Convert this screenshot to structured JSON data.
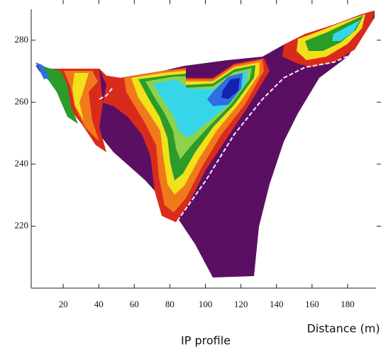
{
  "chart_data": {
    "type": "contour",
    "title": "IP profile",
    "x_label": "Distance (m)",
    "xlim": [
      2,
      196
    ],
    "xticks": [
      20,
      40,
      60,
      80,
      100,
      120,
      140,
      160,
      180
    ],
    "ylim": [
      200,
      290
    ],
    "yticks": [
      220,
      240,
      260,
      280
    ]
  }
}
